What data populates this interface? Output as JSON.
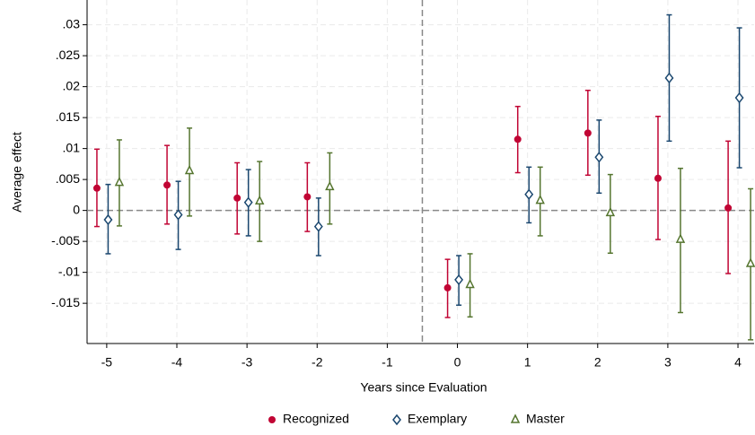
{
  "chart_data": {
    "type": "errorbar",
    "x_label": "Years since Evaluation",
    "y_label": "Average effect",
    "x": [
      -5,
      -4,
      -3,
      -2,
      -1,
      0,
      1,
      2,
      3,
      4
    ],
    "xlim": [
      -5.28,
      4.23
    ],
    "xticks": [
      -5,
      -4,
      -3,
      -2,
      -1,
      0,
      1,
      2,
      3,
      4
    ],
    "ylim": [
      -0.0215,
      0.034
    ],
    "yticks": [
      {
        "value": -0.015,
        "label": "-.015"
      },
      {
        "value": -0.01,
        "label": "-.01"
      },
      {
        "value": -0.005,
        "label": "-.005"
      },
      0,
      {
        "value": 0.005,
        "label": ".005"
      },
      {
        "value": 0.01,
        "label": ".01"
      },
      {
        "value": 0.015,
        "label": ".015"
      },
      {
        "value": 0.02,
        "label": ".02"
      },
      {
        "value": 0.025,
        "label": ".025"
      },
      {
        "value": 0.03,
        "label": ".03"
      }
    ],
    "grid": true,
    "xline": -0.5,
    "yline": 0,
    "legend": "bottom",
    "series": [
      {
        "name": "Recognized",
        "color": "#c10534",
        "marker": "circle",
        "values": [
          0.0036,
          0.0041,
          0.002,
          0.0022,
          null,
          -0.0125,
          0.0115,
          0.0125,
          0.0052,
          0.0004
        ],
        "lower": [
          -0.0026,
          -0.0022,
          -0.0038,
          -0.0034,
          null,
          -0.0173,
          0.0061,
          0.0057,
          -0.0047,
          -0.0102
        ],
        "upper": [
          0.0099,
          0.0105,
          0.0077,
          0.0077,
          null,
          -0.0079,
          0.0168,
          0.0194,
          0.0152,
          0.0112
        ]
      },
      {
        "name": "Exemplary",
        "color": "#1a476f",
        "marker": "diamond",
        "values": [
          -0.0015,
          -0.0007,
          0.0013,
          -0.0026,
          null,
          -0.0112,
          0.0026,
          0.0086,
          0.0214,
          0.0182
        ],
        "lower": [
          -0.007,
          -0.0063,
          -0.0041,
          -0.0073,
          null,
          -0.0153,
          -0.002,
          0.0028,
          0.0112,
          0.0069
        ],
        "upper": [
          0.0042,
          0.0047,
          0.0066,
          0.002,
          null,
          -0.0073,
          0.007,
          0.0146,
          0.0316,
          0.0295
        ]
      },
      {
        "name": "Master",
        "color": "#55752f",
        "marker": "triangle",
        "values": [
          0.0045,
          0.0064,
          0.0015,
          0.0038,
          null,
          -0.012,
          0.0016,
          -0.0004,
          -0.0047,
          -0.0086
        ],
        "lower": [
          -0.0025,
          -0.0009,
          -0.005,
          -0.0022,
          null,
          -0.0172,
          -0.0041,
          -0.0069,
          -0.0165,
          -0.0209
        ],
        "upper": [
          0.0114,
          0.0133,
          0.0079,
          0.0093,
          null,
          -0.007,
          0.007,
          0.0058,
          0.0068,
          0.0035
        ]
      }
    ]
  }
}
